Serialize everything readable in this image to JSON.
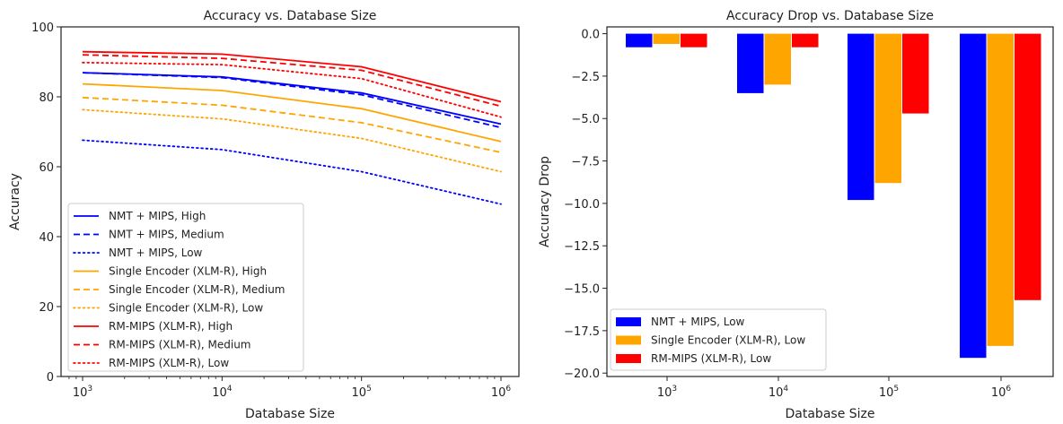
{
  "chart_data": [
    {
      "type": "line",
      "title": "Accuracy vs. Database Size",
      "xlabel": "Database Size",
      "ylabel": "Accuracy",
      "xscale": "log",
      "x": [
        1000,
        10000,
        100000,
        1000000
      ],
      "xticklabels": [
        {
          "base": "10",
          "exp": "3"
        },
        {
          "base": "10",
          "exp": "4"
        },
        {
          "base": "10",
          "exp": "5"
        },
        {
          "base": "10",
          "exp": "6"
        }
      ],
      "ylim": [
        0,
        100
      ],
      "yticks": [
        0,
        20,
        40,
        60,
        80,
        100
      ],
      "legend_position": "lower-left",
      "series": [
        {
          "name": "NMT + MIPS, High",
          "color": "#0000ff",
          "style": "solid",
          "values": [
            86.9,
            85.7,
            81.1,
            72.2
          ]
        },
        {
          "name": "NMT + MIPS, Medium",
          "color": "#0000ff",
          "style": "dashed",
          "values": [
            86.9,
            85.5,
            80.6,
            71.2
          ]
        },
        {
          "name": "NMT + MIPS, Low",
          "color": "#0000ff",
          "style": "dotted",
          "values": [
            67.6,
            64.9,
            58.6,
            49.3
          ]
        },
        {
          "name": "Single Encoder (XLM-R), High",
          "color": "#ffa500",
          "style": "solid",
          "values": [
            83.7,
            81.8,
            76.6,
            67.2
          ]
        },
        {
          "name": "Single Encoder (XLM-R), Medium",
          "color": "#ffa500",
          "style": "dashed",
          "values": [
            79.8,
            77.6,
            72.6,
            64.1
          ]
        },
        {
          "name": "Single Encoder (XLM-R), Low",
          "color": "#ffa500",
          "style": "dotted",
          "values": [
            76.3,
            73.7,
            68.1,
            58.6
          ]
        },
        {
          "name": "RM-MIPS (XLM-R), High",
          "color": "#ff0000",
          "style": "solid",
          "values": [
            92.9,
            92.2,
            88.6,
            78.6
          ]
        },
        {
          "name": "RM-MIPS (XLM-R), Medium",
          "color": "#ff0000",
          "style": "dashed",
          "values": [
            92.0,
            91.0,
            87.6,
            77.3
          ]
        },
        {
          "name": "RM-MIPS (XLM-R), Low",
          "color": "#ff0000",
          "style": "dotted",
          "values": [
            89.8,
            89.2,
            85.2,
            74.2
          ]
        }
      ]
    },
    {
      "type": "bar",
      "title": "Accuracy Drop vs. Database Size",
      "xlabel": "Database Size",
      "ylabel": "Accuracy Drop",
      "categories": [
        {
          "base": "10",
          "exp": "3"
        },
        {
          "base": "10",
          "exp": "4"
        },
        {
          "base": "10",
          "exp": "5"
        },
        {
          "base": "10",
          "exp": "6"
        }
      ],
      "ylim": [
        -20.2,
        0.4
      ],
      "yticks": [
        0.0,
        -2.5,
        -5.0,
        -7.5,
        -10.0,
        -12.5,
        -15.0,
        -17.5,
        -20.0
      ],
      "yticklabels": [
        "0.0",
        "−2.5",
        "−5.0",
        "−7.5",
        "−10.0",
        "−12.5",
        "−15.0",
        "−17.5",
        "−20.0"
      ],
      "legend_position": "lower-left",
      "series": [
        {
          "name": "NMT + MIPS, Low",
          "color": "#0000ff",
          "values": [
            -0.8,
            -3.5,
            -9.8,
            -19.1
          ]
        },
        {
          "name": "Single Encoder (XLM-R), Low",
          "color": "#ffa500",
          "values": [
            -0.6,
            -3.0,
            -8.8,
            -18.4
          ]
        },
        {
          "name": "RM-MIPS (XLM-R), Low",
          "color": "#ff0000",
          "values": [
            -0.8,
            -0.8,
            -4.7,
            -15.7
          ]
        }
      ]
    }
  ]
}
